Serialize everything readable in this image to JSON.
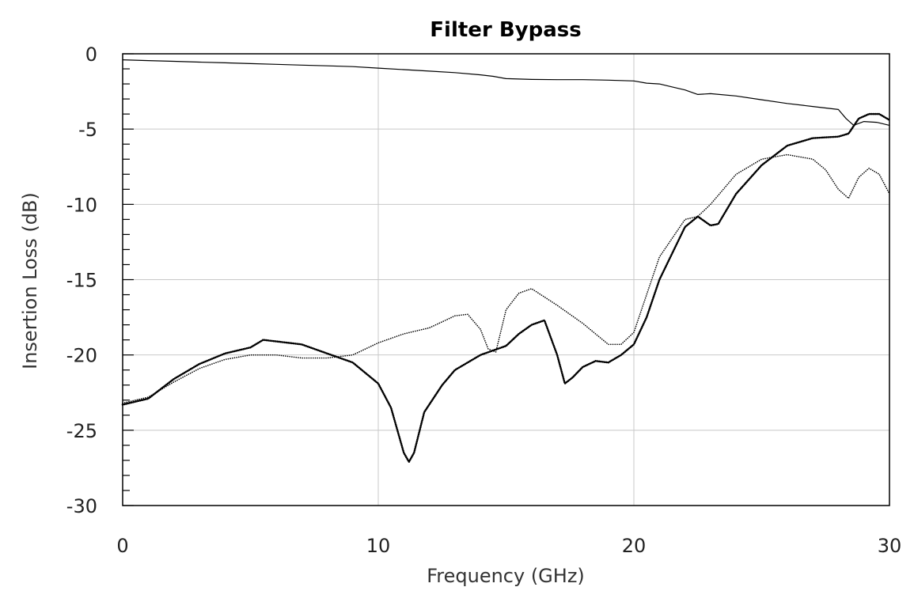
{
  "chart_data": {
    "type": "line",
    "title": "Filter Bypass",
    "xlabel": "Frequency (GHz)",
    "ylabel": "Insertion Loss (dB)",
    "xlim": [
      0,
      30
    ],
    "ylim": [
      -30,
      0
    ],
    "x_ticks": [
      "0",
      "10",
      "20",
      "30"
    ],
    "y_ticks": [
      "0",
      "-5",
      "-10",
      "-15",
      "-20",
      "-25",
      "-30"
    ],
    "grid": true,
    "legend": "none",
    "series": [
      {
        "style": "thin-solid",
        "x": [
          0,
          1,
          2,
          3,
          4,
          5,
          6,
          7,
          8,
          9,
          10,
          11,
          12,
          13,
          14,
          14.5,
          15,
          16,
          17,
          18,
          19,
          20,
          20.5,
          21,
          21.5,
          22,
          22.5,
          23,
          24,
          25,
          26,
          27,
          28,
          28.3,
          28.6,
          29,
          29.5,
          30
        ],
        "y": [
          -0.4,
          -0.45,
          -0.5,
          -0.55,
          -0.6,
          -0.65,
          -0.7,
          -0.75,
          -0.8,
          -0.85,
          -0.95,
          -1.05,
          -1.15,
          -1.25,
          -1.4,
          -1.5,
          -1.65,
          -1.7,
          -1.72,
          -1.72,
          -1.75,
          -1.8,
          -1.95,
          -2.0,
          -2.2,
          -2.4,
          -2.7,
          -2.65,
          -2.8,
          -3.05,
          -3.3,
          -3.5,
          -3.7,
          -4.3,
          -4.75,
          -4.5,
          -4.55,
          -4.75
        ]
      },
      {
        "style": "thin-dotted",
        "x": [
          0,
          1,
          2,
          3,
          4,
          5,
          6,
          7,
          8,
          9,
          10,
          11,
          12,
          13,
          13.5,
          14,
          14.3,
          14.6,
          15,
          15.5,
          16,
          17,
          18,
          19,
          19.5,
          20,
          20.5,
          21,
          22,
          22.5,
          23,
          24,
          25,
          26,
          27,
          27.5,
          28,
          28.4,
          28.8,
          29.2,
          29.6,
          30
        ],
        "y": [
          -23.2,
          -22.8,
          -21.8,
          -20.9,
          -20.3,
          -20.0,
          -20.0,
          -20.2,
          -20.2,
          -20.0,
          -19.2,
          -18.6,
          -18.2,
          -17.4,
          -17.3,
          -18.3,
          -19.6,
          -19.8,
          -17.0,
          -15.9,
          -15.6,
          -16.7,
          -17.9,
          -19.3,
          -19.3,
          -18.5,
          -16.0,
          -13.5,
          -11.0,
          -10.8,
          -10.0,
          -8.0,
          -7.0,
          -6.7,
          -7.0,
          -7.7,
          -9.0,
          -9.6,
          -8.2,
          -7.6,
          -8.0,
          -9.3
        ]
      },
      {
        "style": "thick-dotted",
        "x": [
          0,
          1,
          2,
          3,
          4,
          5,
          5.5,
          6,
          7,
          8,
          9,
          10,
          10.5,
          11,
          11.2,
          11.4,
          11.8,
          12.5,
          13,
          14,
          15,
          15.5,
          16,
          16.5,
          17,
          17.3,
          17.6,
          18,
          18.5,
          19,
          19.5,
          20,
          20.5,
          21,
          22,
          22.5,
          23,
          23.3,
          24,
          25,
          26,
          27,
          28,
          28.4,
          28.8,
          29.2,
          29.6,
          30
        ],
        "y": [
          -23.3,
          -22.9,
          -21.6,
          -20.6,
          -19.9,
          -19.5,
          -19.0,
          -19.1,
          -19.3,
          -19.9,
          -20.5,
          -21.9,
          -23.5,
          -26.5,
          -27.1,
          -26.5,
          -23.8,
          -22.0,
          -21.0,
          -20.0,
          -19.4,
          -18.6,
          -18.0,
          -17.7,
          -20.0,
          -21.9,
          -21.5,
          -20.8,
          -20.4,
          -20.5,
          -20.0,
          -19.3,
          -17.5,
          -15.0,
          -11.5,
          -10.8,
          -11.4,
          -11.3,
          -9.3,
          -7.4,
          -6.1,
          -5.6,
          -5.5,
          -5.3,
          -4.3,
          -4.0,
          -4.0,
          -4.4
        ]
      }
    ]
  }
}
